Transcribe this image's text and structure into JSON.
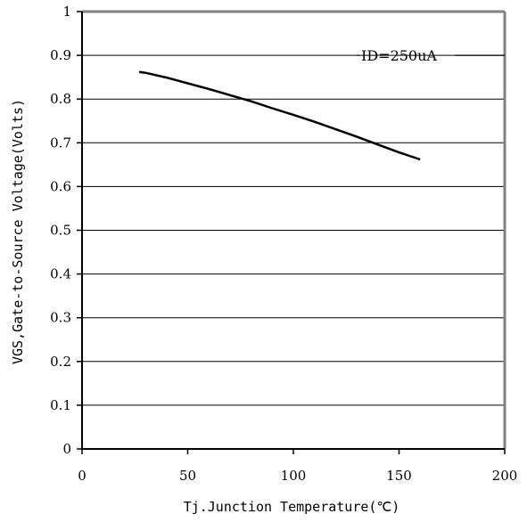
{
  "chart_data": {
    "type": "line",
    "title": "",
    "xlabel": "Tj.Junction Temperature(℃)",
    "ylabel": "VGS,Gate-to-Source Voltage(Volts)",
    "xlim": [
      0,
      200
    ],
    "ylim": [
      0,
      1
    ],
    "x_ticks": [
      0,
      50,
      100,
      150,
      200
    ],
    "x_tick_labels": [
      "0",
      "50",
      "100",
      "150",
      "200"
    ],
    "y_ticks": [
      0,
      0.1,
      0.2,
      0.3,
      0.4,
      0.5,
      0.6,
      0.7,
      0.8,
      0.9,
      1
    ],
    "y_tick_labels": [
      "0",
      "0.1",
      "0.2",
      "0.3",
      "0.4",
      "0.5",
      "0.6",
      "0.7",
      "0.8",
      "0.9",
      "1"
    ],
    "grid": {
      "horizontal": true,
      "vertical": false
    },
    "series": [
      {
        "name": "ID=250uA",
        "color": "#000000",
        "x": [
          27,
          30,
          40,
          50,
          60,
          70,
          80,
          90,
          100,
          110,
          120,
          130,
          140,
          150,
          160
        ],
        "y": [
          0.862,
          0.86,
          0.849,
          0.836,
          0.823,
          0.809,
          0.795,
          0.779,
          0.764,
          0.748,
          0.731,
          0.714,
          0.696,
          0.678,
          0.662
        ]
      }
    ],
    "annotations": [
      {
        "text": "ID=250uA",
        "x": 150,
        "y": 0.9,
        "leader_x": [
          130,
          200
        ]
      }
    ]
  }
}
